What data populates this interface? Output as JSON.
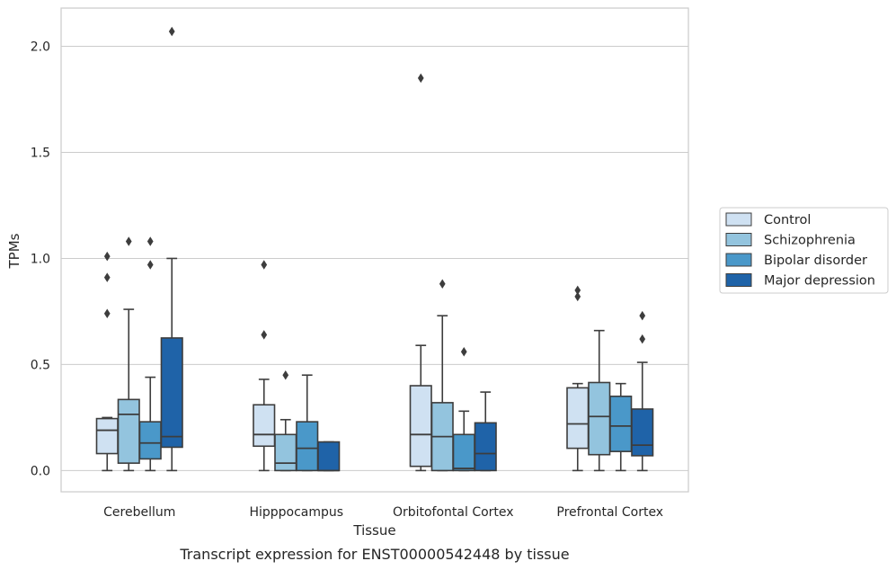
{
  "chart_data": {
    "type": "boxplot",
    "xlabel": "Tissue",
    "ylabel": "TPMs",
    "caption": "Transcript expression for ENST00000542448 by tissue",
    "ylim": [
      -0.1,
      2.18
    ],
    "yticks": [
      "0.0",
      "0.5",
      "1.0",
      "1.5",
      "2.0"
    ],
    "ytick_values": [
      0.0,
      0.5,
      1.0,
      1.5,
      2.0
    ],
    "grid": "horizontal",
    "legend_placement": "right",
    "categories": [
      "Cerebellum",
      "Hipppocampus",
      "Orbitofontal Cortex",
      "Prefrontal Cortex"
    ],
    "series": [
      {
        "name": "Control",
        "color": "#cfe1f2",
        "boxes": [
          {
            "whisker_low": 0.0,
            "q1": 0.08,
            "median": 0.19,
            "q3": 0.245,
            "whisker_high": 0.25,
            "outliers": [
              0.74,
              0.91,
              1.01
            ]
          },
          {
            "whisker_low": 0.0,
            "q1": 0.115,
            "median": 0.17,
            "q3": 0.31,
            "whisker_high": 0.43,
            "outliers": [
              0.64,
              0.97
            ]
          },
          {
            "whisker_low": 0.0,
            "q1": 0.02,
            "median": 0.17,
            "q3": 0.4,
            "whisker_high": 0.59,
            "outliers": [
              1.85
            ]
          },
          {
            "whisker_low": 0.0,
            "q1": 0.105,
            "median": 0.22,
            "q3": 0.39,
            "whisker_high": 0.41,
            "outliers": [
              0.82,
              0.85
            ]
          }
        ]
      },
      {
        "name": "Schizophrenia",
        "color": "#93c4de",
        "boxes": [
          {
            "whisker_low": 0.0,
            "q1": 0.035,
            "median": 0.265,
            "q3": 0.335,
            "whisker_high": 0.76,
            "outliers": [
              1.08
            ]
          },
          {
            "whisker_low": 0.0,
            "q1": 0.0,
            "median": 0.035,
            "q3": 0.17,
            "whisker_high": 0.24,
            "outliers": [
              0.45
            ]
          },
          {
            "whisker_low": 0.0,
            "q1": 0.0,
            "median": 0.16,
            "q3": 0.32,
            "whisker_high": 0.73,
            "outliers": [
              0.88
            ]
          },
          {
            "whisker_low": 0.0,
            "q1": 0.075,
            "median": 0.255,
            "q3": 0.415,
            "whisker_high": 0.66,
            "outliers": []
          }
        ]
      },
      {
        "name": "Bipolar disorder",
        "color": "#4a98c9",
        "boxes": [
          {
            "whisker_low": 0.0,
            "q1": 0.055,
            "median": 0.13,
            "q3": 0.23,
            "whisker_high": 0.44,
            "outliers": [
              0.97,
              1.08
            ]
          },
          {
            "whisker_low": 0.0,
            "q1": 0.0,
            "median": 0.105,
            "q3": 0.23,
            "whisker_high": 0.45,
            "outliers": []
          },
          {
            "whisker_low": 0.0,
            "q1": 0.0,
            "median": 0.01,
            "q3": 0.17,
            "whisker_high": 0.28,
            "outliers": [
              0.56
            ]
          },
          {
            "whisker_low": 0.0,
            "q1": 0.09,
            "median": 0.21,
            "q3": 0.35,
            "whisker_high": 0.41,
            "outliers": []
          }
        ]
      },
      {
        "name": "Major depression",
        "color": "#1f63a8",
        "boxes": [
          {
            "whisker_low": 0.0,
            "q1": 0.11,
            "median": 0.16,
            "q3": 0.625,
            "whisker_high": 1.0,
            "outliers": [
              2.07
            ]
          },
          {
            "whisker_low": 0.0,
            "q1": 0.0,
            "median": 0.0,
            "q3": 0.135,
            "whisker_high": 0.135,
            "outliers": []
          },
          {
            "whisker_low": 0.0,
            "q1": 0.0,
            "median": 0.08,
            "q3": 0.225,
            "whisker_high": 0.37,
            "outliers": []
          },
          {
            "whisker_low": 0.0,
            "q1": 0.07,
            "median": 0.12,
            "q3": 0.29,
            "whisker_high": 0.51,
            "outliers": [
              0.62,
              0.73
            ]
          }
        ]
      }
    ]
  }
}
